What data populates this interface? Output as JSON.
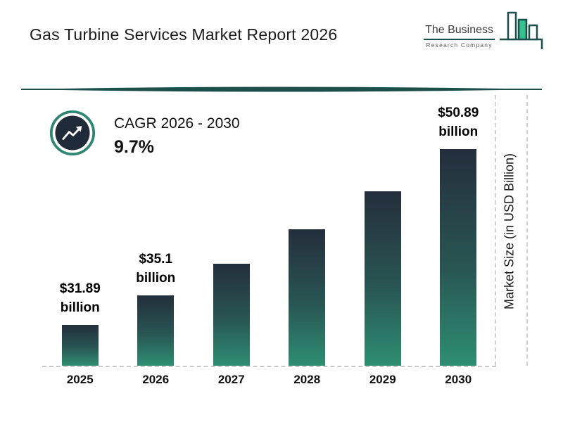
{
  "header": {
    "title": "Gas Turbine Services Market Report 2026",
    "logo": {
      "line1": "The Business",
      "line2": "Research Company"
    }
  },
  "cagr": {
    "label": "CAGR 2026 - 2030",
    "value": "9.7%"
  },
  "chart_data": {
    "type": "bar",
    "categories": [
      "2025",
      "2026",
      "2027",
      "2028",
      "2029",
      "2030"
    ],
    "values": [
      31.89,
      35.1,
      38.5,
      42.2,
      46.3,
      50.89
    ],
    "value_labels": [
      "$31.89 billion",
      "$35.1 billion",
      null,
      null,
      null,
      "$50.89 billion"
    ],
    "ylabel": "Market Size (in USD Billion)",
    "ylim": [
      27.5,
      51
    ],
    "grid": "off",
    "legend": "none",
    "colors": {
      "bar_gradient_top": "#242e3c",
      "bar_gradient_bottom": "#2e8e72",
      "divider_teal": "#1c4f4a",
      "ring_teal": "#2e8673",
      "circle_dark": "#202b39",
      "logo_green": "#35c08e",
      "dashed_gray": "#c9c9c9"
    }
  }
}
